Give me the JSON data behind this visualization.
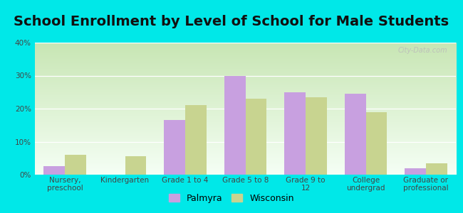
{
  "title": "School Enrollment by Level of School for Male Students",
  "categories": [
    "Nursery,\npreschool",
    "Kindergarten",
    "Grade 1 to 4",
    "Grade 5 to 8",
    "Grade 9 to\n12",
    "College\nundergrad",
    "Graduate or\nprofessional"
  ],
  "palmyra": [
    2.5,
    0,
    16.5,
    30.0,
    25.0,
    24.5,
    2.0
  ],
  "wisconsin": [
    6.0,
    5.5,
    21.0,
    23.0,
    23.5,
    19.0,
    3.5
  ],
  "palmyra_color": "#c8a0e0",
  "wisconsin_color": "#c8d490",
  "background_outer": "#00e8e8",
  "background_inner_top": "#f5fff5",
  "background_inner_bottom": "#d8f0c8",
  "ylim": [
    0,
    40
  ],
  "yticks": [
    0,
    10,
    20,
    30,
    40
  ],
  "legend_palmyra": "Palmyra",
  "legend_wisconsin": "Wisconsin",
  "title_fontsize": 14,
  "tick_fontsize": 7.5,
  "bar_width": 0.35,
  "watermark": "City-Data.com"
}
